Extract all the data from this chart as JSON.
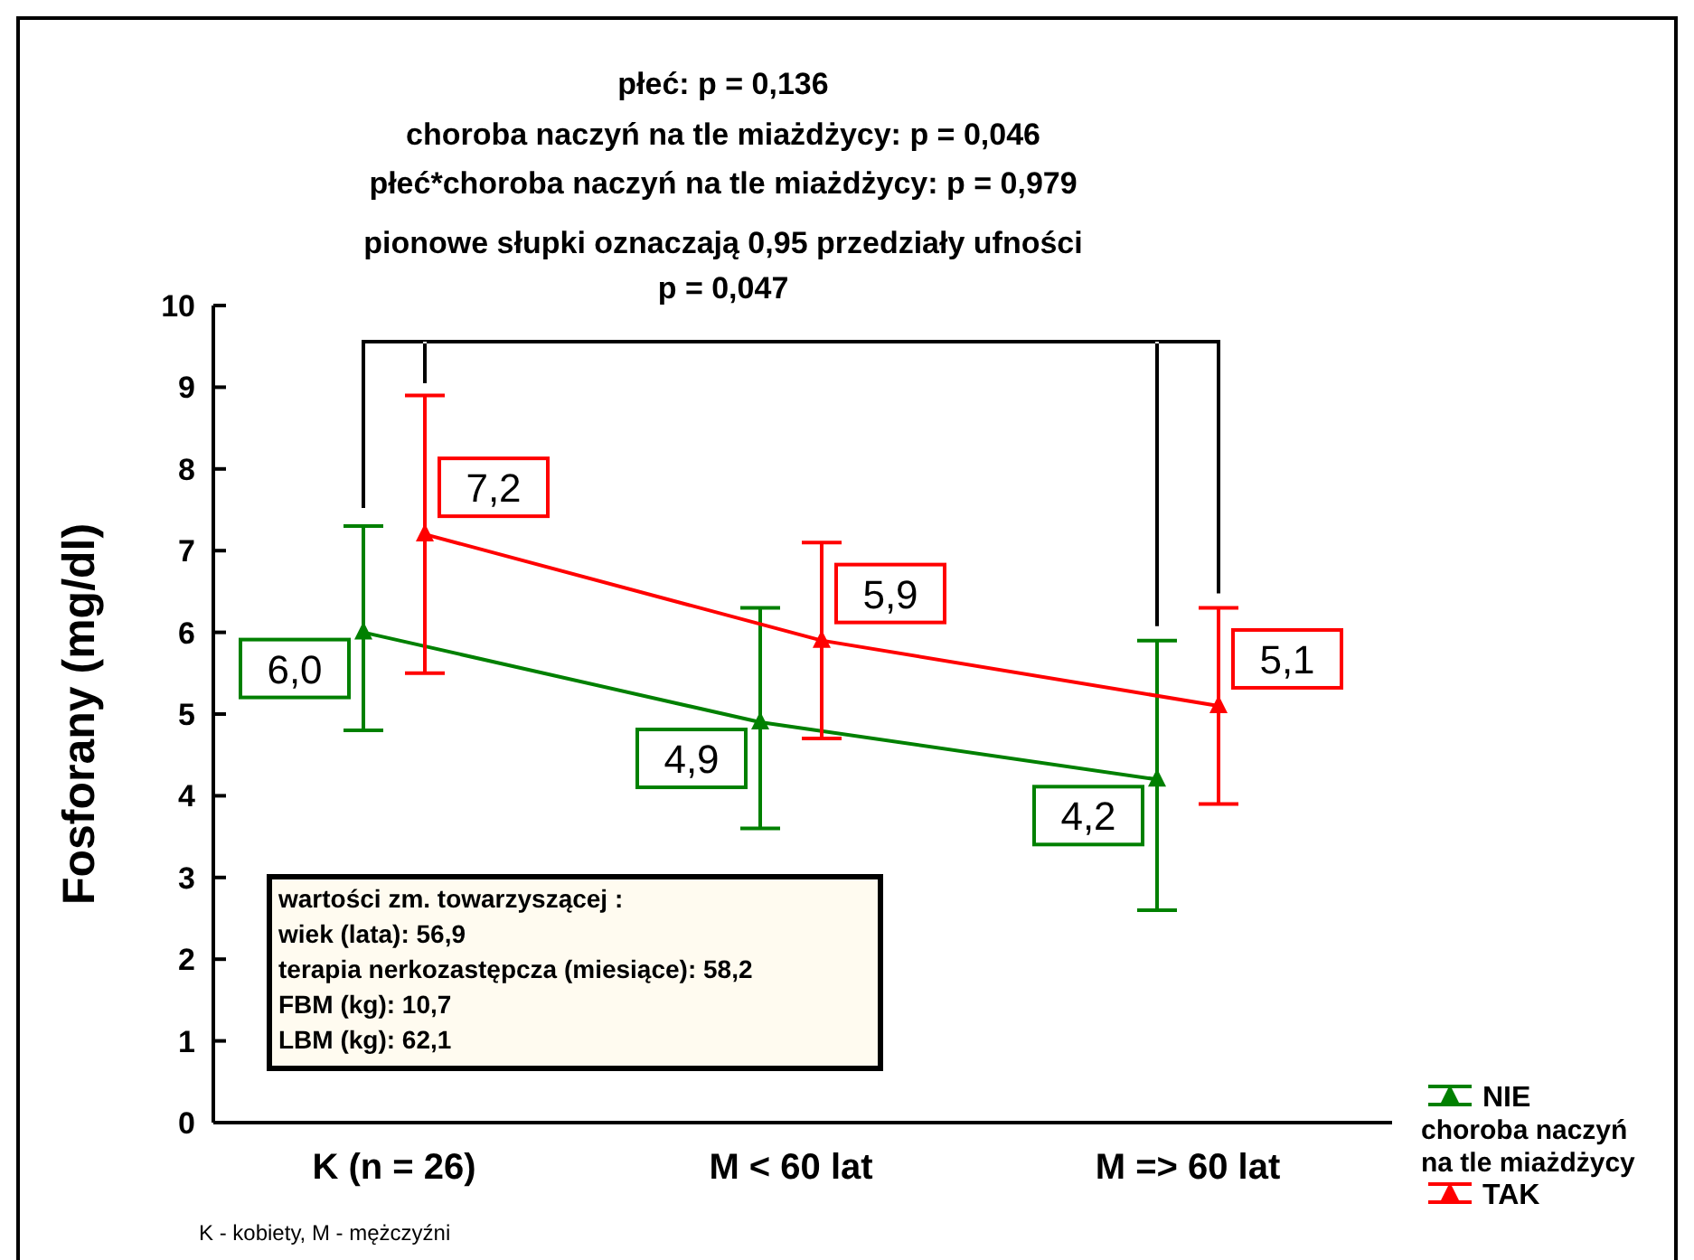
{
  "chart_data": {
    "type": "line",
    "ylabel": "Fosforany (mg/dl)",
    "legend_title": "choroba naczyń\nna tle miażdżycy",
    "categories": [
      "K (n = 26)",
      "M < 60 lat",
      "M => 60 lat"
    ],
    "series": [
      {
        "name": "NIE",
        "color": "#008000",
        "values": [
          6.0,
          4.9,
          4.2
        ],
        "errors": [
          [
            4.8,
            7.3
          ],
          [
            3.6,
            6.3
          ],
          [
            2.6,
            5.9
          ]
        ],
        "value_labels": [
          "6,0",
          "4,9",
          "4,2"
        ]
      },
      {
        "name": "TAK",
        "color": "#ff0000",
        "values": [
          7.2,
          5.9,
          5.1
        ],
        "errors": [
          [
            5.5,
            8.9
          ],
          [
            4.7,
            7.1
          ],
          [
            3.9,
            6.3
          ]
        ],
        "value_labels": [
          "7,2",
          "5,9",
          "5,1"
        ]
      }
    ],
    "ylim": [
      0,
      10
    ],
    "yticks": [
      0,
      1,
      2,
      3,
      4,
      5,
      6,
      7,
      8,
      9,
      10
    ],
    "grid": false,
    "legend": "bottom right",
    "marker": "triangle",
    "line_style": "solid",
    "annotations": [
      "płeć: p = 0,136",
      "choroba naczyń na tle miażdżycy: p = 0,046",
      "płeć*choroba naczyń na tle miażdżycy: p = 0,979",
      "pionowe słupki oznaczają 0,95 przedziały ufności",
      "p = 0,047",
      "wartości zm. towarzyszącej :",
      "wiek (lata): 56,9",
      "terapia nerkozastępcza (miesiące): 58,2",
      "FBM (kg): 10,7",
      "LBM (kg): 62,1",
      "K - kobiety, M - mężczyźni"
    ]
  }
}
